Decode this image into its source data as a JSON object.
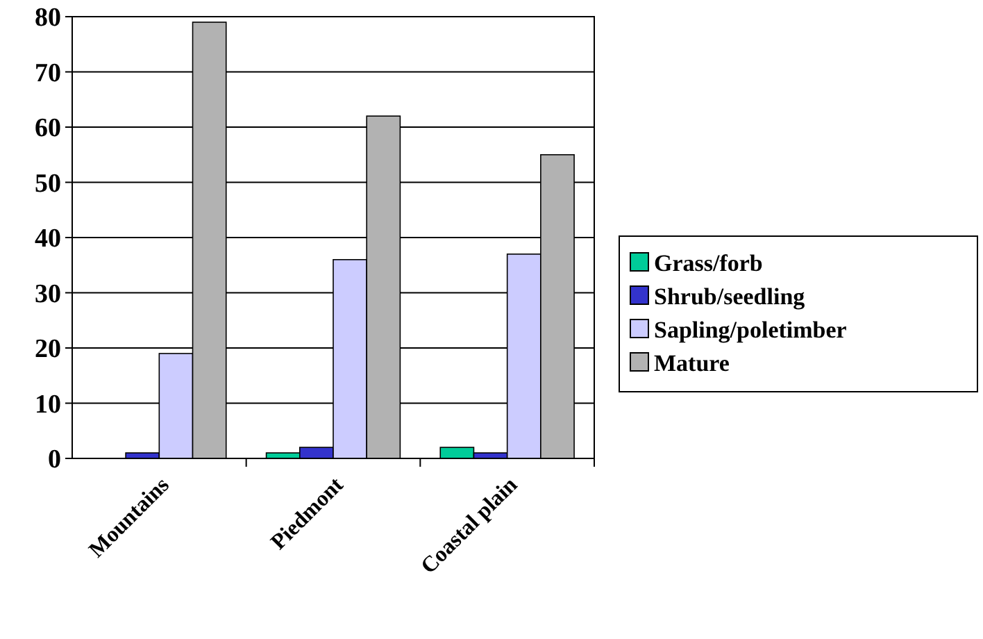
{
  "chart_data": {
    "type": "bar",
    "categories": [
      "Mountains",
      "Piedmont",
      "Coastal plain"
    ],
    "series": [
      {
        "name": "Grass/forb",
        "color": "#00cc99",
        "values": [
          0,
          1,
          2
        ]
      },
      {
        "name": "Shrub/seedling",
        "color": "#3333cc",
        "values": [
          1,
          2,
          1
        ]
      },
      {
        "name": "Sapling/poletimber",
        "color": "#ccccff",
        "values": [
          19,
          36,
          37
        ]
      },
      {
        "name": "Mature",
        "color": "#b2b2b2",
        "values": [
          79,
          62,
          55
        ]
      }
    ],
    "ylim": [
      0,
      80
    ],
    "yticks": [
      0,
      10,
      20,
      30,
      40,
      50,
      60,
      70,
      80
    ],
    "grid": "y",
    "legend": "right"
  }
}
